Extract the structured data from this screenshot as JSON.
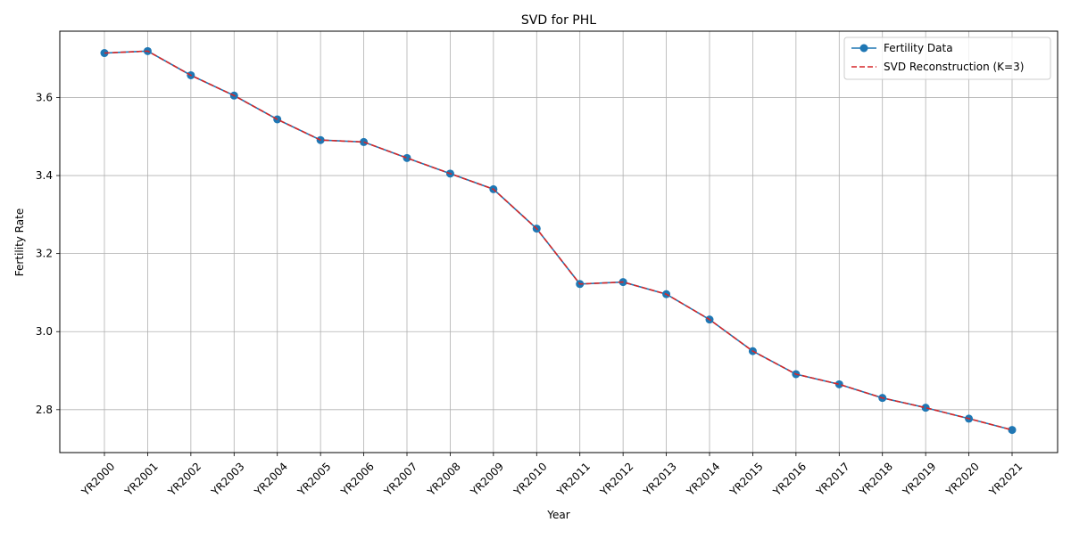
{
  "chart_data": {
    "type": "line",
    "title": "SVD for PHL",
    "xlabel": "Year",
    "ylabel": "Fertility Rate",
    "categories": [
      "YR2000",
      "YR2001",
      "YR2002",
      "YR2003",
      "YR2004",
      "YR2005",
      "YR2006",
      "YR2007",
      "YR2008",
      "YR2009",
      "YR2010",
      "YR2011",
      "YR2012",
      "YR2013",
      "YR2014",
      "YR2015",
      "YR2016",
      "YR2017",
      "YR2018",
      "YR2019",
      "YR2020",
      "YR2021"
    ],
    "ylim": [
      2.69,
      3.77
    ],
    "yticks": [
      2.8,
      3.0,
      3.2,
      3.4,
      3.6
    ],
    "ytick_labels": [
      "2.8",
      "3.0",
      "3.2",
      "3.4",
      "3.6"
    ],
    "grid": true,
    "legend_position": "top-right",
    "series": [
      {
        "name": "Fertility Data",
        "style": "solid line with circle markers",
        "color": "#1f77b4",
        "values": [
          3.714,
          3.719,
          3.657,
          3.605,
          3.544,
          3.491,
          3.486,
          3.445,
          3.405,
          3.365,
          3.264,
          3.122,
          3.127,
          3.096,
          3.031,
          2.95,
          2.891,
          2.865,
          2.83,
          2.805,
          2.777,
          2.748
        ]
      },
      {
        "name": "SVD Reconstruction (K=3)",
        "style": "dashed line",
        "color": "#d62728",
        "values": [
          3.714,
          3.719,
          3.657,
          3.605,
          3.544,
          3.491,
          3.486,
          3.445,
          3.405,
          3.365,
          3.264,
          3.122,
          3.127,
          3.096,
          3.031,
          2.95,
          2.891,
          2.865,
          2.83,
          2.805,
          2.777,
          2.748
        ]
      }
    ]
  }
}
